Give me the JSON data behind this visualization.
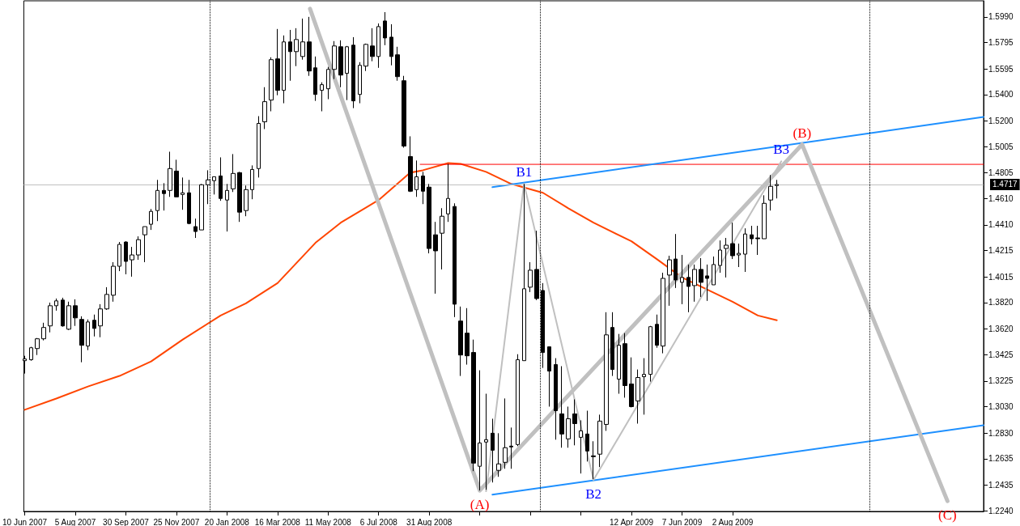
{
  "chart_data": {
    "type": "candlestick",
    "grid": false,
    "marker": "none",
    "line_style": "solid",
    "xlim": [
      "2007-06-09",
      "2010-05-07"
    ],
    "xticks": [
      {
        "value": "2007-06-10",
        "label": "10 Jun 2007"
      },
      {
        "value": "2007-08-05",
        "label": "5 Aug 2007"
      },
      {
        "value": "2007-09-30",
        "label": "30 Sep 2007"
      },
      {
        "value": "2007-11-25",
        "label": "25 Nov 2007"
      },
      {
        "value": "2008-01-20",
        "label": "20 Jan 2008"
      },
      {
        "value": "2008-03-16",
        "label": "16 Mar 2008"
      },
      {
        "value": "2008-05-11",
        "label": "11 May 2008"
      },
      {
        "value": "2008-07-06",
        "label": "6 Jul 2008"
      },
      {
        "value": "2008-08-31",
        "label": "31 Aug 2008"
      },
      {
        "value": "2008-10-26",
        "label": null
      },
      {
        "value": "2008-12-21",
        "label": null
      },
      {
        "value": "2009-02-15",
        "label": null
      },
      {
        "value": "2009-04-12",
        "label": "12 Apr 2009"
      },
      {
        "value": "2009-06-07",
        "label": "7 Jun 2009"
      },
      {
        "value": "2009-08-02",
        "label": "2 Aug 2009"
      }
    ],
    "ylim": [
      1.2234,
      1.6112
    ],
    "yticks": [
      {
        "value": 1.599,
        "label": "1.5990"
      },
      1.5795,
      1.5595,
      {
        "value": 1.54,
        "label": "1.5400"
      },
      {
        "value": 1.52,
        "label": "1.5200"
      },
      1.5005,
      1.4805,
      {
        "value": 1.461,
        "label": "1.4610"
      },
      {
        "value": 1.441,
        "label": "1.4410"
      },
      1.4215,
      1.4015,
      {
        "value": 1.382,
        "label": "1.3820"
      },
      {
        "value": 1.362,
        "label": "1.3620"
      },
      1.3425,
      1.3225,
      {
        "value": 1.303,
        "label": "1.3030"
      },
      {
        "value": 1.283,
        "label": "1.2830"
      },
      1.2635,
      1.2435,
      {
        "value": 1.224,
        "label": "1.2240"
      }
    ],
    "ref_lines": [
      {
        "axis": "x",
        "value": "2008-01-01",
        "label": null,
        "color": "#000000",
        "line_style": "dotted"
      },
      {
        "axis": "x",
        "value": "2009-01-01",
        "label": null,
        "color": "#000000",
        "line_style": "dotted"
      },
      {
        "axis": "x",
        "value": "2010-01-01",
        "label": null,
        "color": "#000000",
        "line_style": "dotted"
      },
      {
        "axis": "y",
        "value": 1.4717,
        "label": "1.4717",
        "color": "#c0c0c0",
        "line_style": "solid"
      }
    ],
    "series": [
      {
        "type": "line",
        "color": "#ff4500",
        "x": [
          "2007-06-10",
          "2007-07-15",
          "2007-08-19",
          "2007-09-23",
          "2007-10-28",
          "2007-12-02",
          "2008-01-13",
          "2008-02-10",
          "2008-03-16",
          "2008-04-27",
          "2008-05-25",
          "2008-07-06",
          "2008-08-10",
          "2008-08-24",
          "2008-09-21",
          "2008-10-05",
          "2008-11-02",
          "2008-11-30",
          "2009-01-04",
          "2009-02-01",
          "2009-03-01",
          "2009-04-12",
          "2009-05-10",
          "2009-06-07",
          "2009-07-05",
          "2009-08-02",
          "2009-08-30",
          "2009-09-20"
        ],
        "values": [
          1.3006,
          1.3091,
          1.3183,
          1.3263,
          1.3373,
          1.3539,
          1.3722,
          1.3814,
          1.3968,
          1.4274,
          1.4427,
          1.4599,
          1.4807,
          1.4825,
          1.488,
          1.4874,
          1.4813,
          1.4721,
          1.4654,
          1.4537,
          1.4427,
          1.4286,
          1.4151,
          1.4011,
          1.3919,
          1.3827,
          1.3722,
          1.3686
        ]
      },
      {
        "type": "line",
        "color": "#ff0000",
        "x": [
          "2008-08-21",
          "2010-05-07"
        ],
        "values": [
          1.487,
          1.487
        ]
      },
      {
        "type": "line",
        "color": "#1e90ff",
        "x": [
          "2008-11-09",
          "2010-05-07"
        ],
        "values": [
          1.4697,
          1.523
        ]
      },
      {
        "type": "line",
        "color": "#1e90ff",
        "x": [
          "2008-11-09",
          "2010-05-07"
        ],
        "values": [
          1.2362,
          1.2889
        ]
      },
      {
        "type": "line",
        "color": "#c0c0c0",
        "x": [
          "2008-04-21",
          "2008-10-26",
          "2009-10-18",
          "2010-03-28"
        ],
        "values": [
          1.6051,
          1.2393,
          1.5021,
          1.2313
        ],
        "value_labels": [
          null,
          "(A)",
          "(B)",
          "(C)"
        ]
      },
      {
        "type": "line",
        "color": "#c0c0c0",
        "x": [
          "2008-11-02",
          "2008-12-14",
          "2009-03-01",
          "2009-09-25"
        ],
        "values": [
          1.2387,
          1.4721,
          1.2473,
          1.4893
        ],
        "value_labels": [
          null,
          "B1",
          "B2",
          "B3"
        ]
      },
      {
        "color": "#000000",
        "x": [
          "2007-06-10",
          "2007-06-17",
          "2007-06-24",
          "2007-07-01",
          "2007-07-08",
          "2007-07-15",
          "2007-07-22",
          "2007-07-29",
          "2007-08-05",
          "2007-08-12",
          "2007-08-19",
          "2007-08-26",
          "2007-09-02",
          "2007-09-09",
          "2007-09-16",
          "2007-09-23",
          "2007-09-30",
          "2007-10-07",
          "2007-10-14",
          "2007-10-21",
          "2007-10-28",
          "2007-11-04",
          "2007-11-11",
          "2007-11-18",
          "2007-11-25",
          "2007-12-02",
          "2007-12-09",
          "2007-12-16",
          "2007-12-23",
          "2007-12-30",
          "2008-01-06",
          "2008-01-13",
          "2008-01-20",
          "2008-01-27",
          "2008-02-03",
          "2008-02-10",
          "2008-02-17",
          "2008-02-24",
          "2008-03-02",
          "2008-03-09",
          "2008-03-16",
          "2008-03-23",
          "2008-03-30",
          "2008-04-06",
          "2008-04-13",
          "2008-04-20",
          "2008-04-27",
          "2008-05-04",
          "2008-05-11",
          "2008-05-18",
          "2008-05-25",
          "2008-06-01",
          "2008-06-08",
          "2008-06-15",
          "2008-06-22",
          "2008-06-29",
          "2008-07-06",
          "2008-07-13",
          "2008-07-20",
          "2008-07-27",
          "2008-08-03",
          "2008-08-10",
          "2008-08-17",
          "2008-08-24",
          "2008-08-31",
          "2008-09-07",
          "2008-09-14",
          "2008-09-21",
          "2008-09-28",
          "2008-10-05",
          "2008-10-12",
          "2008-10-19",
          "2008-10-26",
          "2008-11-02",
          "2008-11-09",
          "2008-11-16",
          "2008-11-23",
          "2008-11-30",
          "2008-12-07",
          "2008-12-14",
          "2008-12-21",
          "2008-12-28",
          "2009-01-04",
          "2009-01-11",
          "2009-01-18",
          "2009-01-25",
          "2009-02-01",
          "2009-02-08",
          "2009-02-15",
          "2009-02-22",
          "2009-03-01",
          "2009-03-08",
          "2009-03-15",
          "2009-03-22",
          "2009-03-29",
          "2009-04-05",
          "2009-04-12",
          "2009-04-19",
          "2009-04-26",
          "2009-05-03",
          "2009-05-10",
          "2009-05-17",
          "2009-05-24",
          "2009-05-31",
          "2009-06-07",
          "2009-06-14",
          "2009-06-21",
          "2009-06-28",
          "2009-07-05",
          "2009-07-12",
          "2009-07-19",
          "2009-07-26",
          "2009-08-02",
          "2009-08-09",
          "2009-08-16",
          "2009-08-23",
          "2009-08-30",
          "2009-09-06",
          "2009-09-13",
          "2009-09-20"
        ],
        "ohlc": [
          [
            1.3379,
            1.3416,
            1.3281,
            1.3392
          ],
          [
            1.3386,
            1.3484,
            1.3379,
            1.3477
          ],
          [
            1.3471,
            1.3551,
            1.3422,
            1.3545
          ],
          [
            1.3545,
            1.3667,
            1.3533,
            1.3631
          ],
          [
            1.3643,
            1.382,
            1.3594,
            1.3796
          ],
          [
            1.3796,
            1.3851,
            1.3759,
            1.3833
          ],
          [
            1.3839,
            1.3857,
            1.3637,
            1.3643
          ],
          [
            1.3618,
            1.3827,
            1.3612,
            1.3796
          ],
          [
            1.3796,
            1.3845,
            1.3643,
            1.3704
          ],
          [
            1.3692,
            1.3716,
            1.3367,
            1.3496
          ],
          [
            1.349,
            1.3692,
            1.3459,
            1.3673
          ],
          [
            1.3686,
            1.3729,
            1.3563,
            1.3624
          ],
          [
            1.3643,
            1.3808,
            1.3557,
            1.3772
          ],
          [
            1.3772,
            1.3937,
            1.3765,
            1.3882
          ],
          [
            1.3876,
            1.4127,
            1.3827,
            1.4096
          ],
          [
            1.4096,
            1.428,
            1.4059,
            1.4262
          ],
          [
            1.428,
            1.4286,
            1.4035,
            1.4133
          ],
          [
            1.4145,
            1.4243,
            1.4017,
            1.4182
          ],
          [
            1.4182,
            1.4323,
            1.4145,
            1.4298
          ],
          [
            1.4335,
            1.4397,
            1.4127,
            1.4397
          ],
          [
            1.4415,
            1.4531,
            1.4372,
            1.4513
          ],
          [
            1.4519,
            1.4752,
            1.4439,
            1.4672
          ],
          [
            1.4672,
            1.4727,
            1.4519,
            1.4648
          ],
          [
            1.4672,
            1.4966,
            1.4623,
            1.4838
          ],
          [
            1.4819,
            1.4905,
            1.4623,
            1.4623
          ],
          [
            1.4641,
            1.477,
            1.4525,
            1.4654
          ],
          [
            1.4654,
            1.4752,
            1.4415,
            1.4421
          ],
          [
            1.4397,
            1.4458,
            1.4311,
            1.436
          ],
          [
            1.4372,
            1.4721,
            1.4372,
            1.4715
          ],
          [
            1.4715,
            1.4825,
            1.4568,
            1.4752
          ],
          [
            1.4746,
            1.4776,
            1.4641,
            1.4776
          ],
          [
            1.4782,
            1.4923,
            1.4593,
            1.4611
          ],
          [
            1.4599,
            1.4721,
            1.436,
            1.4672
          ],
          [
            1.4684,
            1.4948,
            1.466,
            1.4801
          ],
          [
            1.4807,
            1.4813,
            1.4433,
            1.4507
          ],
          [
            1.4519,
            1.4709,
            1.4476,
            1.4678
          ],
          [
            1.4678,
            1.4862,
            1.4605,
            1.4831
          ],
          [
            1.4838,
            1.5236,
            1.477,
            1.5181
          ],
          [
            1.5193,
            1.5456,
            1.5138,
            1.5346
          ],
          [
            1.5358,
            1.5683,
            1.5273,
            1.5665
          ],
          [
            1.5671,
            1.5898,
            1.5395,
            1.5432
          ],
          [
            1.5432,
            1.5849,
            1.5334,
            1.58
          ],
          [
            1.58,
            1.5891,
            1.5505,
            1.5726
          ],
          [
            1.5726,
            1.5904,
            1.5616,
            1.5818
          ],
          [
            1.5689,
            1.5977,
            1.5665,
            1.58
          ],
          [
            1.58,
            1.599,
            1.5542,
            1.5579
          ],
          [
            1.5603,
            1.5689,
            1.5352,
            1.5401
          ],
          [
            1.5432,
            1.5493,
            1.5273,
            1.5475
          ],
          [
            1.5444,
            1.561,
            1.5365,
            1.5591
          ],
          [
            1.5591,
            1.5806,
            1.5518,
            1.5769
          ],
          [
            1.5763,
            1.5812,
            1.5456,
            1.5548
          ],
          [
            1.5561,
            1.5769,
            1.5358,
            1.5763
          ],
          [
            1.5775,
            1.5836,
            1.5297,
            1.5352
          ],
          [
            1.5401,
            1.5646,
            1.5334,
            1.5622
          ],
          [
            1.5616,
            1.5787,
            1.5579,
            1.5781
          ],
          [
            1.5769,
            1.5904,
            1.5653,
            1.5689
          ],
          [
            1.5689,
            1.594,
            1.5603,
            1.5916
          ],
          [
            1.5959,
            1.6026,
            1.5775,
            1.583
          ],
          [
            1.5836,
            1.5934,
            1.5622,
            1.5689
          ],
          [
            1.5702,
            1.5763,
            1.5505,
            1.5536
          ],
          [
            1.5505,
            1.5542,
            1.4997,
            1.5009
          ],
          [
            1.4929,
            1.5083,
            1.466,
            1.4666
          ],
          [
            1.4678,
            1.4899,
            1.4623,
            1.4776
          ],
          [
            1.4782,
            1.4813,
            1.4568,
            1.4666
          ],
          [
            1.4697,
            1.4721,
            1.4194,
            1.4231
          ],
          [
            1.4335,
            1.4433,
            1.3888,
            1.4213
          ],
          [
            1.4347,
            1.4537,
            1.4072,
            1.4476
          ],
          [
            1.4494,
            1.4874,
            1.4433,
            1.4611
          ],
          [
            1.455,
            1.4574,
            1.371,
            1.3808
          ],
          [
            1.368,
            1.379,
            1.3263,
            1.3422
          ],
          [
            1.3588,
            1.3778,
            1.3349,
            1.3416
          ],
          [
            1.3441,
            1.3539,
            1.254,
            1.2601
          ],
          [
            1.2577,
            1.3306,
            1.2393,
            1.2754
          ],
          [
            1.2761,
            1.3128,
            1.2399,
            1.2779
          ],
          [
            1.2828,
            1.2938,
            1.2454,
            1.2699
          ],
          [
            1.2546,
            1.2828,
            1.2497,
            1.2595
          ],
          [
            1.2607,
            1.3092,
            1.2558,
            1.2718
          ],
          [
            1.273,
            1.2871,
            1.2558,
            1.2724
          ],
          [
            1.2742,
            1.3428,
            1.273,
            1.3386
          ],
          [
            1.3379,
            1.4721,
            1.3379,
            1.3925
          ],
          [
            1.3937,
            1.4127,
            1.39,
            1.4066
          ],
          [
            1.4072,
            1.4366,
            1.3839,
            1.3851
          ],
          [
            1.3912,
            1.3968,
            1.3324,
            1.3441
          ],
          [
            1.3484,
            1.3484,
            1.303,
            1.33
          ],
          [
            1.3349,
            1.3398,
            1.2779,
            1.2999
          ],
          [
            1.2975,
            1.3337,
            1.2718,
            1.2822
          ],
          [
            1.2785,
            1.303,
            1.2718,
            1.2938
          ],
          [
            1.2975,
            1.3085,
            1.2736,
            1.2901
          ],
          [
            1.2797,
            1.2926,
            1.2522,
            1.2846
          ],
          [
            1.2822,
            1.2999,
            1.2613,
            1.2693
          ],
          [
            1.2656,
            1.2767,
            1.2479,
            1.265
          ],
          [
            1.2669,
            1.2969,
            1.2571,
            1.292
          ],
          [
            1.2895,
            1.3747,
            1.2846,
            1.3575
          ],
          [
            1.3631,
            1.3747,
            1.3263,
            1.3312
          ],
          [
            1.3239,
            1.3582,
            1.3128,
            1.3496
          ],
          [
            1.3508,
            1.3588,
            1.3098,
            1.319
          ],
          [
            1.3202,
            1.3404,
            1.3024,
            1.303
          ],
          [
            1.3073,
            1.3312,
            1.2901,
            1.3251
          ],
          [
            1.3257,
            1.3398,
            1.2969,
            1.3275
          ],
          [
            1.3275,
            1.3643,
            1.322,
            1.3637
          ],
          [
            1.3655,
            1.3729,
            1.3477,
            1.3496
          ],
          [
            1.349,
            1.4047,
            1.3435,
            1.4004
          ],
          [
            1.4029,
            1.4176,
            1.3796,
            1.4145
          ],
          [
            1.4151,
            1.4341,
            1.3931,
            1.3992
          ],
          [
            1.3974,
            1.4182,
            1.3808,
            1.4011
          ],
          [
            1.4011,
            1.4109,
            1.3747,
            1.3943
          ],
          [
            1.3949,
            1.4109,
            1.3827,
            1.4072
          ],
          [
            1.4072,
            1.4158,
            1.3863,
            1.3974
          ],
          [
            1.4023,
            1.4109,
            1.3833,
            1.4004
          ],
          [
            1.3955,
            1.417,
            1.3955,
            1.4109
          ],
          [
            1.4102,
            1.4292,
            1.4047,
            1.4219
          ],
          [
            1.4231,
            1.4311,
            1.4011,
            1.4256
          ],
          [
            1.4268,
            1.4427,
            1.4151,
            1.4176
          ],
          [
            1.4182,
            1.4268,
            1.409,
            1.4194
          ],
          [
            1.4188,
            1.4384,
            1.4053,
            1.4341
          ],
          [
            1.4335,
            1.4403,
            1.4262,
            1.4305
          ],
          [
            1.4311,
            1.4403,
            1.4182,
            1.4305
          ],
          [
            1.4305,
            1.4635,
            1.4305,
            1.4574
          ],
          [
            1.4599,
            1.4789,
            1.4519,
            1.4703
          ],
          [
            1.4709,
            1.4752,
            1.4611,
            1.4717
          ]
        ]
      }
    ]
  }
}
